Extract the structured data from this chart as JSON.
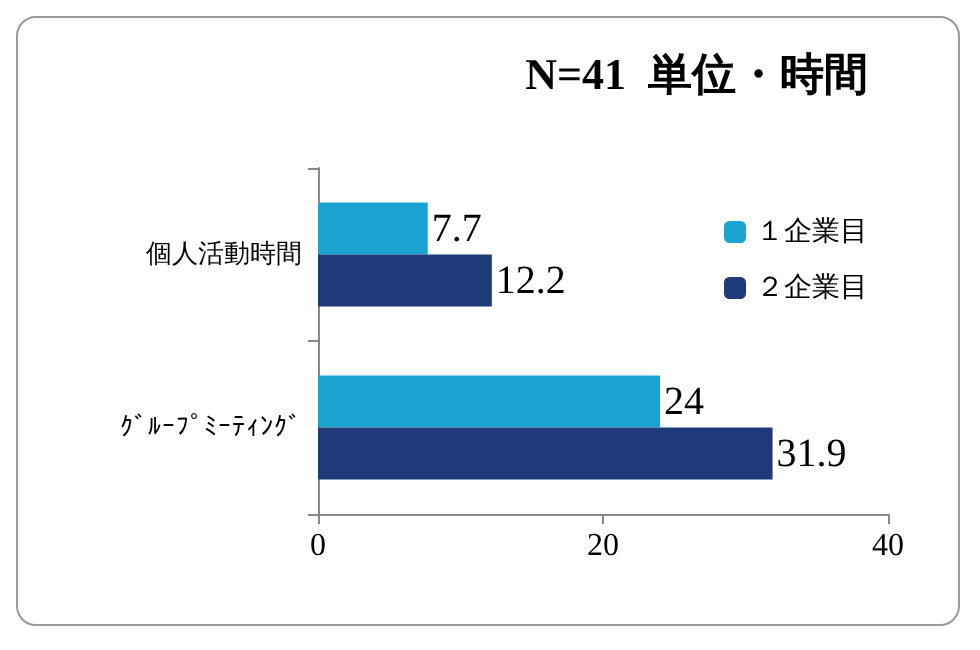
{
  "chart_data": {
    "type": "bar",
    "orientation": "horizontal",
    "title": "N=41  単位・時間",
    "categories": [
      "個人活動時間",
      "ｸﾞﾙｰﾌﾟﾐｰﾃｨﾝｸﾞ"
    ],
    "series": [
      {
        "name": "１企業目",
        "color": "#1aa3d1",
        "values": [
          7.7,
          24
        ]
      },
      {
        "name": "２企業目",
        "color": "#1f3a78",
        "values": [
          12.2,
          31.9
        ]
      }
    ],
    "xlim": [
      0,
      40
    ],
    "xticks": [
      0,
      20,
      40
    ],
    "grid": false,
    "legend": "top right",
    "data_labels": true
  }
}
